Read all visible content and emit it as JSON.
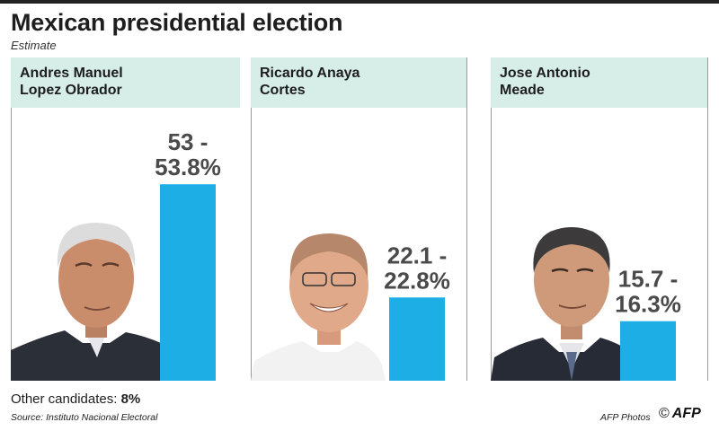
{
  "title": "Mexican presidential election",
  "subtitle": "Estimate",
  "chart_data": {
    "type": "bar",
    "categories": [
      "Andres Manuel Lopez Obrador",
      "Ricardo Anaya Cortes",
      "Jose Antonio Meade"
    ],
    "category_labels": [
      "Andres Manuel\nLopez Obrador",
      "Ricardo Anaya\nCortes",
      "Jose Antonio\nMeade"
    ],
    "values": [
      53.8,
      22.8,
      16.3
    ],
    "ranges": [
      [
        53,
        53.8
      ],
      [
        22.1,
        22.8
      ],
      [
        15.7,
        16.3
      ]
    ],
    "value_labels": [
      [
        "53 -",
        "53.8%"
      ],
      [
        "22.1 -",
        "22.8%"
      ],
      [
        "15.7 -",
        "16.3%"
      ]
    ],
    "ylim": [
      0,
      60
    ],
    "bar_color": "#1eaee6",
    "title": "Mexican presidential election",
    "xlabel": "",
    "ylabel": ""
  },
  "other": {
    "label": "Other candidates:",
    "value": "8%"
  },
  "source": "Source: Instituto Nacional Electoral",
  "credit": "AFP Photos",
  "logo": {
    "copyright": "©",
    "text": "AFP"
  }
}
